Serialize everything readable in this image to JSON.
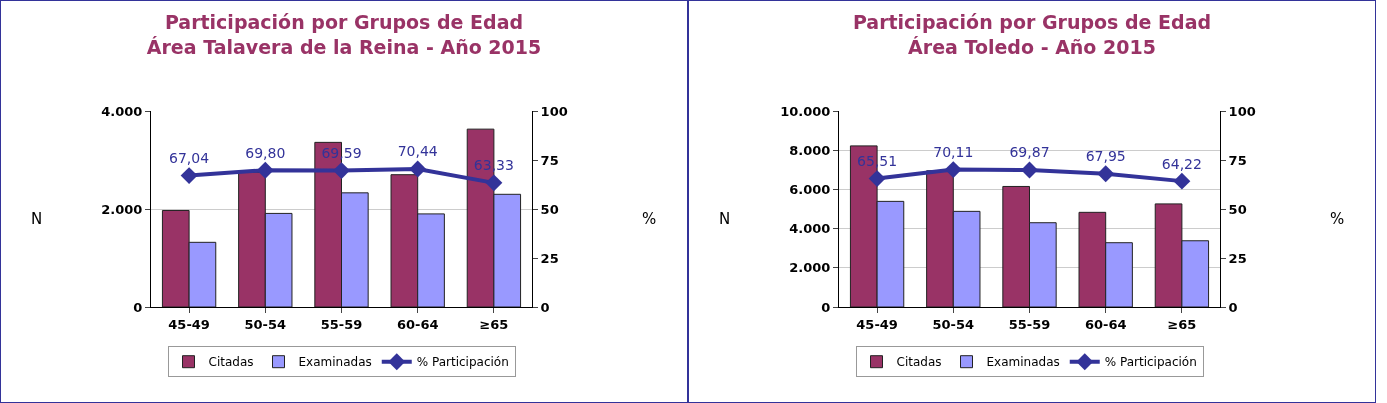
{
  "chart_data": [
    {
      "type": "bar",
      "title": "Participación por Grupos de Edad\nÁrea Talavera de la Reina - Año 2015",
      "ylabel": "N",
      "y2label": "%",
      "categories": [
        "45-49",
        "50-54",
        "55-59",
        "60-64",
        "≥65"
      ],
      "series": [
        {
          "name": "Citadas",
          "color": "#993366",
          "values": [
            1970,
            2750,
            3360,
            2700,
            3630
          ]
        },
        {
          "name": "Examinadas",
          "color": "#9999ff",
          "values": [
            1320,
            1910,
            2330,
            1900,
            2300
          ]
        },
        {
          "name": "% Participación",
          "type": "line",
          "axis": "y2",
          "color": "#333399",
          "marker": "diamond",
          "values": [
            67.04,
            69.8,
            69.59,
            70.44,
            63.33
          ],
          "value_labels": [
            "67,04",
            "69,80",
            "69,59",
            "70,44",
            "63,33"
          ]
        }
      ],
      "ylim": [
        0,
        4000
      ],
      "yticks": [
        {
          "value": 0,
          "label": "0"
        },
        {
          "value": 2000,
          "label": "2.000"
        },
        {
          "value": 4000,
          "label": "4.000"
        }
      ],
      "y2lim": [
        0,
        100
      ],
      "y2ticks": [
        0,
        25,
        50,
        75,
        100
      ],
      "grid": "y",
      "legend": "bottom"
    },
    {
      "type": "bar",
      "title": "Participación por Grupos de Edad\nÁrea Toledo - Año 2015",
      "ylabel": "N",
      "y2label": "%",
      "categories": [
        "45-49",
        "50-54",
        "55-59",
        "60-64",
        "≥65"
      ],
      "series": [
        {
          "name": "Citadas",
          "color": "#993366",
          "values": [
            8220,
            6950,
            6150,
            4830,
            5260
          ]
        },
        {
          "name": "Examinadas",
          "color": "#9999ff",
          "values": [
            5390,
            4880,
            4300,
            3280,
            3380
          ]
        },
        {
          "name": "% Participación",
          "type": "line",
          "axis": "y2",
          "color": "#333399",
          "marker": "diamond",
          "values": [
            65.51,
            70.11,
            69.87,
            67.95,
            64.22
          ],
          "value_labels": [
            "65,51",
            "70,11",
            "69,87",
            "67,95",
            "64,22"
          ]
        }
      ],
      "ylim": [
        0,
        10000
      ],
      "yticks": [
        {
          "value": 0,
          "label": "0"
        },
        {
          "value": 2000,
          "label": "2.000"
        },
        {
          "value": 4000,
          "label": "4.000"
        },
        {
          "value": 6000,
          "label": "6.000"
        },
        {
          "value": 8000,
          "label": "8.000"
        },
        {
          "value": 10000,
          "label": "10.000"
        }
      ],
      "y2lim": [
        0,
        100
      ],
      "y2ticks": [
        0,
        25,
        50,
        75,
        100
      ],
      "grid": "y",
      "legend": "bottom"
    }
  ]
}
